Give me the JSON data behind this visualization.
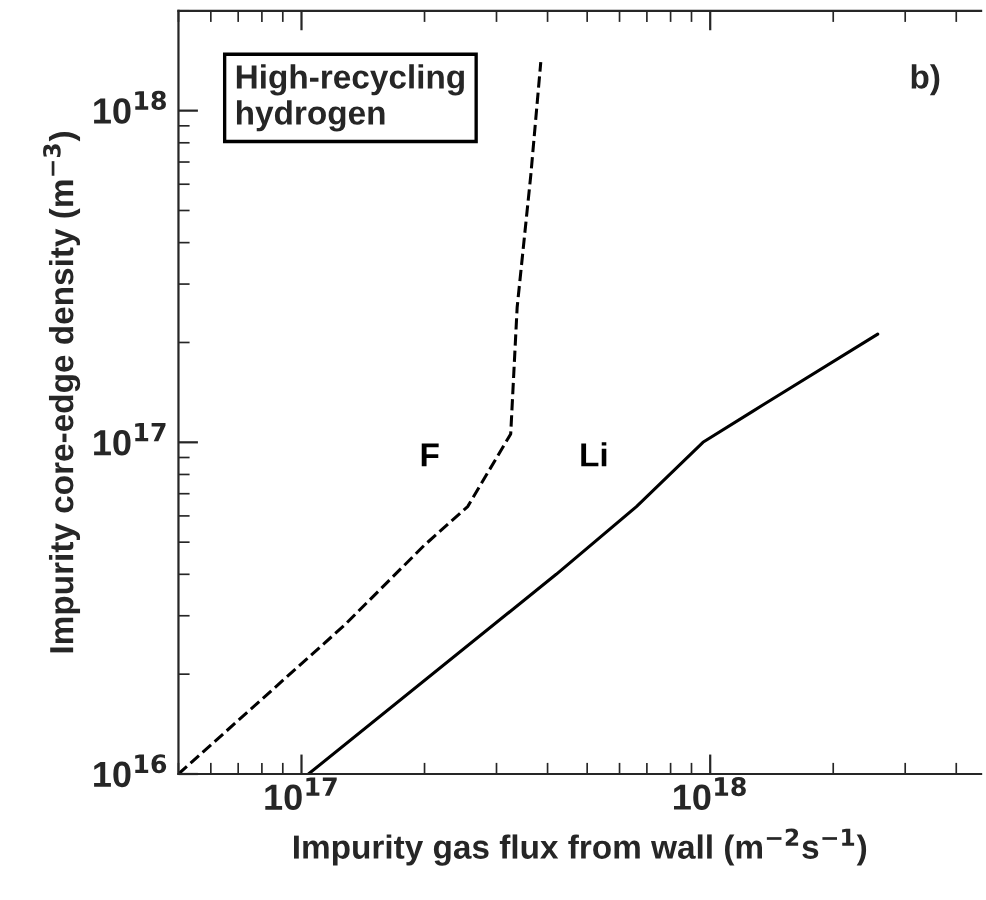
{
  "chart_data": {
    "type": "line",
    "xlabel": "Impurity gas flux from wall (m$^{−2}$s$^{−1}$)",
    "ylabel": "Impurity core-edge density (m$^{−3}$)",
    "annotations": [
      "High-recycling\nhydrogen",
      "b)"
    ],
    "log": "xy",
    "xlim": [
      5e+16,
      4.6e+18
    ],
    "ylim": [
      1e+16,
      2e+18
    ],
    "xticks": [
      {
        "value": 1e+17,
        "label": "10$^{17}$"
      },
      {
        "value": 1e+18,
        "label": "10$^{18}$"
      }
    ],
    "yticks": [
      {
        "value": 1e+16,
        "label": "10$^{16}$"
      },
      {
        "value": 1e+17,
        "label": "10$^{17}$"
      },
      {
        "value": 1e+18,
        "label": "10$^{18}$"
      }
    ],
    "grid": false,
    "legend": false,
    "series": [
      {
        "name": "F",
        "color": "#000000",
        "line_style": "dashed",
        "x": [
          5e+16,
          1.27e+17,
          2e+17,
          2.55e+17,
          3.25e+17,
          3.37e+17,
          3.64e+17,
          3.85e+17
        ],
        "values": [
          1e+16,
          2.8e+16,
          4.9e+16,
          6.4e+16,
          1.06e+17,
          2.55e+17,
          6.4e+17,
          1.4e+18
        ]
      },
      {
        "name": "Li",
        "color": "#000000",
        "line_style": "solid",
        "x": [
          1.04e+17,
          4.2e+17,
          6.6e+17,
          9.6e+17,
          1.27e+18,
          2.57e+18
        ],
        "values": [
          1e+16,
          4e+16,
          6.4e+16,
          1e+17,
          1.24e+17,
          2.12e+17
        ]
      }
    ]
  }
}
